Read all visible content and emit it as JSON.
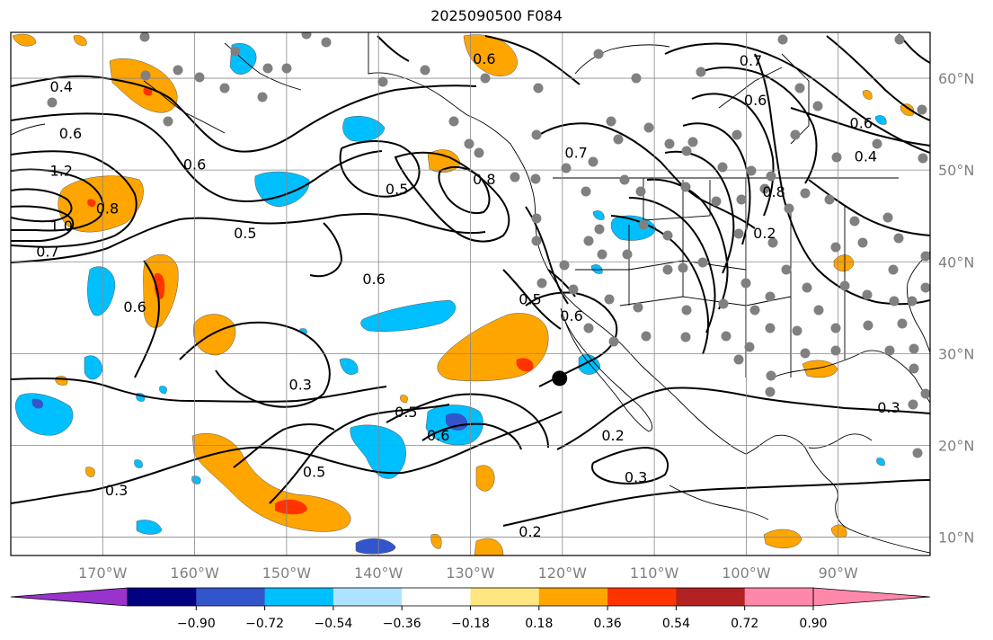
{
  "title": "2025090500 F084",
  "lon_ticks": [
    "170°W",
    "160°W",
    "150°W",
    "140°W",
    "130°W",
    "120°W",
    "110°W",
    "100°W",
    "90°W"
  ],
  "lat_ticks": [
    "60°N",
    "50°N",
    "40°N",
    "30°N",
    "20°N",
    "10°N"
  ],
  "colorbar": {
    "ticks": [
      "−0.90",
      "−0.72",
      "−0.54",
      "−0.36",
      "−0.18",
      "0.18",
      "0.36",
      "0.54",
      "0.72",
      "0.90"
    ],
    "colors": [
      "#9933cc",
      "#000080",
      "#3355cc",
      "#00bfff",
      "#aee3ff",
      "#ffffff",
      "#ffe680",
      "#ffa500",
      "#ff3300",
      "#b22222",
      "#ff88aa",
      "#ff88aa"
    ]
  },
  "contour_labels": [
    {
      "text": "0.6",
      "lon": -128.5,
      "lat": 62.0
    },
    {
      "text": "0.7",
      "lon": -99.5,
      "lat": 61.8
    },
    {
      "text": "0.4",
      "lon": -174.5,
      "lat": 59.0
    },
    {
      "text": "0.6",
      "lon": -173.5,
      "lat": 53.9
    },
    {
      "text": "0.6",
      "lon": -160.0,
      "lat": 50.5
    },
    {
      "text": "1.2",
      "lon": -174.5,
      "lat": 49.8
    },
    {
      "text": "0.8",
      "lon": -169.5,
      "lat": 45.7
    },
    {
      "text": "1.0",
      "lon": -174.5,
      "lat": 43.8
    },
    {
      "text": "0.7",
      "lon": -176.0,
      "lat": 41.0
    },
    {
      "text": "0.5",
      "lon": -138.0,
      "lat": 47.8
    },
    {
      "text": "0.8",
      "lon": -128.5,
      "lat": 48.9
    },
    {
      "text": "0.7",
      "lon": -118.5,
      "lat": 51.8
    },
    {
      "text": "0.5",
      "lon": -154.5,
      "lat": 43.0
    },
    {
      "text": "0.6",
      "lon": -140.5,
      "lat": 38.0
    },
    {
      "text": "0.6",
      "lon": -166.5,
      "lat": 35.0
    },
    {
      "text": "0.5",
      "lon": -123.5,
      "lat": 35.8
    },
    {
      "text": "0.6",
      "lon": -119.0,
      "lat": 34.0
    },
    {
      "text": "0.3",
      "lon": -148.5,
      "lat": 26.5
    },
    {
      "text": "0.5",
      "lon": -137.0,
      "lat": 23.5
    },
    {
      "text": "0.6",
      "lon": -133.5,
      "lat": 21.0
    },
    {
      "text": "0.5",
      "lon": -147.0,
      "lat": 17.0
    },
    {
      "text": "0.3",
      "lon": -168.5,
      "lat": 15.0
    },
    {
      "text": "0.2",
      "lon": -114.5,
      "lat": 21.0
    },
    {
      "text": "0.3",
      "lon": -112.0,
      "lat": 16.4
    },
    {
      "text": "0.2",
      "lon": -123.5,
      "lat": 10.5
    },
    {
      "text": "0.3",
      "lon": -84.5,
      "lat": 24.0
    },
    {
      "text": "0.4",
      "lon": -87.0,
      "lat": 51.4
    },
    {
      "text": "0.6",
      "lon": -87.5,
      "lat": 55.0
    },
    {
      "text": "0.2",
      "lon": -98.0,
      "lat": 43.0
    },
    {
      "text": "0.8",
      "lon": -97.0,
      "lat": 47.5
    },
    {
      "text": "0.6",
      "lon": -99.0,
      "lat": 57.5
    }
  ],
  "station_marker": {
    "lon": -120.3,
    "lat": 27.3
  }
}
